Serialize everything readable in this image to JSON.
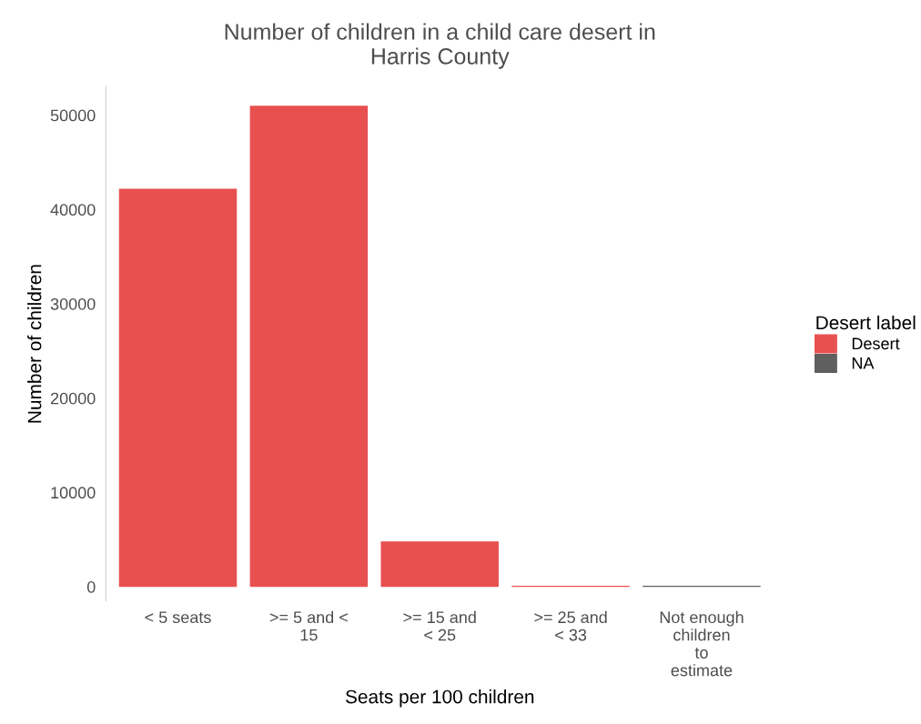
{
  "chart_data": {
    "type": "bar",
    "title": "Number of children in a child care desert in\nHarris County",
    "xlabel": "Seats per 100 children",
    "ylabel": "Number of children",
    "legend_title": "Desert label",
    "categories": [
      "< 5 seats",
      ">= 5 and <\n15",
      ">= 15 and\n< 25",
      ">= 25 and\n< 33",
      "Not enough\nchildren\nto\nestimate"
    ],
    "series": [
      {
        "name": "Desert",
        "color": "#e85050",
        "values": [
          42200,
          51000,
          4800,
          100,
          null
        ]
      },
      {
        "name": "NA",
        "color": "#5f5f5f",
        "values": [
          null,
          null,
          null,
          null,
          100
        ]
      }
    ],
    "ylim": [
      -1500,
      53000
    ],
    "yticks": [
      0,
      10000,
      20000,
      30000,
      40000,
      50000
    ],
    "grid": false,
    "legend": "right"
  }
}
